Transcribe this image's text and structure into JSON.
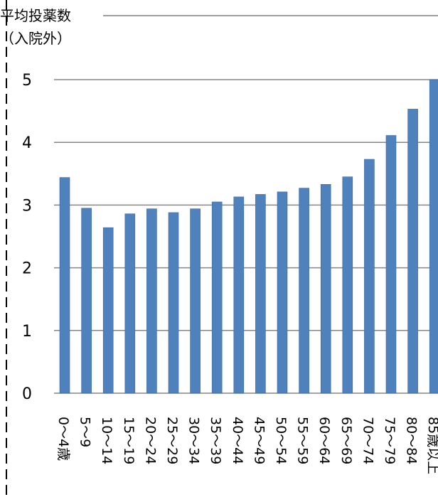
{
  "chart_data": {
    "type": "bar",
    "ylabel": [
      "平均投薬数",
      "（入院外）"
    ],
    "ylim": [
      0,
      5
    ],
    "yticks": [
      0,
      1,
      2,
      3,
      4,
      5
    ],
    "grid": true,
    "legend": "none",
    "bar_color": "#4F81BD",
    "categories": [
      "0〜4歳",
      "5〜9",
      "10〜14",
      "15〜19",
      "20〜24",
      "25〜29",
      "30〜34",
      "35〜39",
      "40〜44",
      "45〜49",
      "50〜54",
      "55〜59",
      "60〜64",
      "65〜69",
      "70〜74",
      "75〜79",
      "80〜84",
      "85歳以上"
    ],
    "values": [
      3.44,
      2.95,
      2.64,
      2.86,
      2.94,
      2.88,
      2.94,
      3.05,
      3.13,
      3.17,
      3.21,
      3.27,
      3.33,
      3.45,
      3.73,
      4.11,
      4.53,
      5.0
    ]
  }
}
